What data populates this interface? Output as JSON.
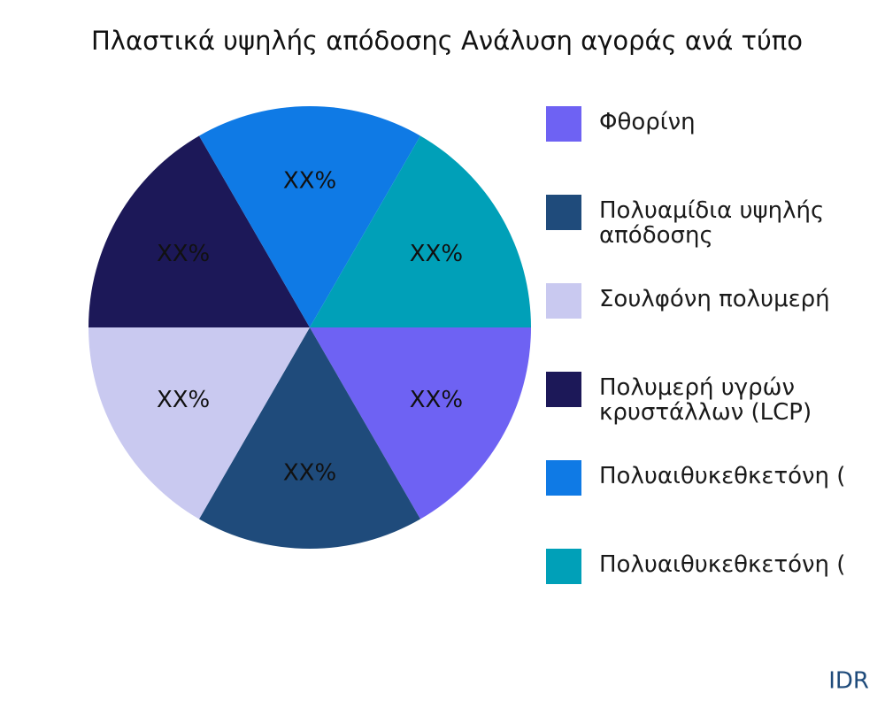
{
  "chart_data": {
    "type": "pie",
    "title": "Πλαστικά υψηλής απόδοσης Ανάλυση αγοράς ανά τύπο",
    "categories": [
      "Φθορίνη",
      "Πολυαμίδια υψηλής απόδοσης",
      "Σουλφόνη πολυμερή",
      "Πολυμερή υγρών κρυστάλλων (LCP)",
      "Πολυαιθυκεθκετόνη (",
      "Πολυαιθυκεθκετόνη ("
    ],
    "values": [
      16.67,
      16.67,
      16.67,
      16.67,
      16.67,
      16.67
    ],
    "value_labels": [
      "XX%",
      "XX%",
      "XX%",
      "XX%",
      "XX%",
      "XX%"
    ],
    "colors": [
      "#6e62f3",
      "#1f4b7b",
      "#c9c9f0",
      "#1c1858",
      "#0f7ae5",
      "#00a0b8"
    ],
    "source": "IDR"
  }
}
